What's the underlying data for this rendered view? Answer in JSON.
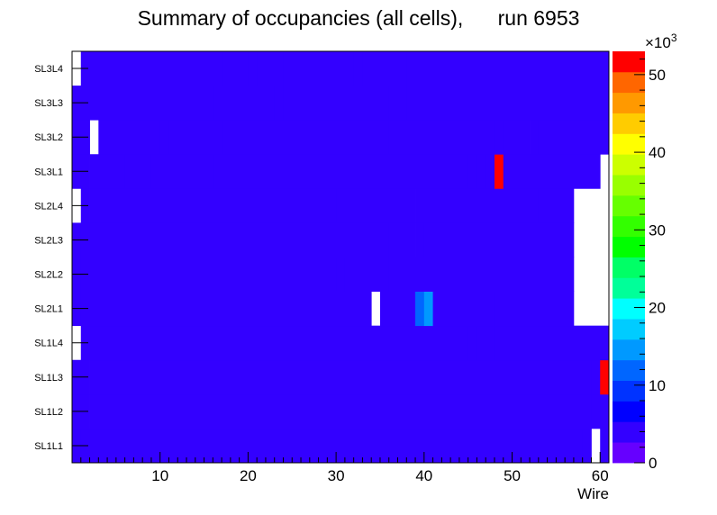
{
  "chart_data": {
    "type": "heatmap",
    "title": "Summary of occupancies (all cells),      run 6953",
    "xlabel": "Wire",
    "ylabel": "",
    "x_range": [
      0,
      61
    ],
    "x_ticks": [
      10,
      20,
      30,
      40,
      50,
      60
    ],
    "rows": [
      "SL1L1",
      "SL1L2",
      "SL1L3",
      "SL1L4",
      "SL2L1",
      "SL2L2",
      "SL2L3",
      "SL2L4",
      "SL3L1",
      "SL3L2",
      "SL3L3",
      "SL3L4"
    ],
    "z_multiplier": "×10",
    "z_exponent": "3",
    "z_range": [
      0,
      53
    ],
    "z_ticks": [
      0,
      10,
      20,
      30,
      40,
      50
    ],
    "palette": [
      "#6600ff",
      "#3300ff",
      "#0000ff",
      "#0033ff",
      "#0066ff",
      "#0099ff",
      "#00ccff",
      "#00ffff",
      "#00ff99",
      "#00ff66",
      "#00ff00",
      "#33ff00",
      "#66ff00",
      "#99ff00",
      "#ccff00",
      "#ffff00",
      "#ffcc00",
      "#ff9900",
      "#ff6600",
      "#ff0000"
    ],
    "segments": {
      "SL1L1": [
        [
          0,
          1,
          5
        ],
        [
          1,
          41,
          4
        ],
        [
          41,
          56,
          5
        ],
        [
          56,
          58,
          4
        ],
        [
          58,
          59,
          5
        ],
        [
          59,
          60,
          -1
        ],
        [
          60,
          61,
          4
        ]
      ],
      "SL1L2": [
        [
          0,
          2,
          5
        ],
        [
          2,
          59,
          4
        ],
        [
          59,
          60,
          5
        ],
        [
          60,
          61,
          4
        ]
      ],
      "SL1L3": [
        [
          0,
          2,
          5
        ],
        [
          2,
          59,
          4
        ],
        [
          59,
          60,
          5
        ],
        [
          60,
          61,
          53
        ]
      ],
      "SL1L4": [
        [
          0,
          1,
          -1
        ],
        [
          1,
          4,
          5
        ],
        [
          4,
          45,
          4
        ],
        [
          45,
          46,
          5
        ],
        [
          46,
          48,
          4
        ],
        [
          48,
          61,
          5
        ]
      ],
      "SL2L1": [
        [
          0,
          1,
          5
        ],
        [
          1,
          34,
          4
        ],
        [
          34,
          35,
          -1
        ],
        [
          35,
          39,
          4
        ],
        [
          39,
          40,
          11
        ],
        [
          40,
          41,
          15
        ],
        [
          41,
          44,
          4
        ],
        [
          44,
          48,
          5
        ],
        [
          48,
          56,
          4
        ],
        [
          56,
          57,
          5
        ],
        [
          57,
          61,
          -1
        ]
      ],
      "SL2L2": [
        [
          0,
          1,
          5
        ],
        [
          1,
          30,
          4
        ],
        [
          30,
          31,
          5
        ],
        [
          31,
          34,
          4
        ],
        [
          34,
          36,
          5
        ],
        [
          36,
          44,
          4
        ],
        [
          44,
          51,
          5
        ],
        [
          51,
          56,
          4
        ],
        [
          56,
          57,
          5
        ],
        [
          57,
          61,
          -1
        ]
      ],
      "SL2L3": [
        [
          0,
          1,
          5
        ],
        [
          1,
          29,
          4
        ],
        [
          29,
          36,
          5
        ],
        [
          36,
          37,
          4
        ],
        [
          37,
          39,
          5
        ],
        [
          39,
          40,
          4
        ],
        [
          40,
          51,
          5
        ],
        [
          51,
          57,
          4
        ],
        [
          57,
          61,
          -1
        ]
      ],
      "SL2L4": [
        [
          0,
          1,
          -1
        ],
        [
          1,
          2,
          5
        ],
        [
          2,
          30,
          4
        ],
        [
          30,
          37,
          5
        ],
        [
          37,
          39,
          4
        ],
        [
          39,
          53,
          5
        ],
        [
          53,
          57,
          4
        ],
        [
          57,
          61,
          -1
        ]
      ],
      "SL3L1": [
        [
          0,
          2,
          5
        ],
        [
          2,
          6,
          4
        ],
        [
          6,
          9,
          5
        ],
        [
          9,
          12,
          4
        ],
        [
          12,
          16,
          5
        ],
        [
          16,
          45,
          4
        ],
        [
          45,
          46,
          5
        ],
        [
          46,
          47,
          4
        ],
        [
          47,
          48,
          5
        ],
        [
          48,
          49,
          53
        ],
        [
          49,
          60,
          5
        ],
        [
          60,
          61,
          -1
        ]
      ],
      "SL3L2": [
        [
          0,
          2,
          5
        ],
        [
          2,
          3,
          -1
        ],
        [
          3,
          10,
          5
        ],
        [
          10,
          11,
          4
        ],
        [
          11,
          17,
          5
        ],
        [
          17,
          36,
          4
        ],
        [
          36,
          37,
          5
        ],
        [
          37,
          48,
          4
        ],
        [
          48,
          49,
          3
        ],
        [
          49,
          52,
          4
        ],
        [
          52,
          53,
          3
        ],
        [
          53,
          61,
          5
        ]
      ],
      "SL3L3": [
        [
          0,
          16,
          5
        ],
        [
          16,
          23,
          4
        ],
        [
          23,
          24,
          5
        ],
        [
          24,
          34,
          4
        ],
        [
          34,
          36,
          5
        ],
        [
          36,
          38,
          4
        ],
        [
          38,
          61,
          5
        ]
      ],
      "SL3L4": [
        [
          0,
          1,
          -1
        ],
        [
          1,
          17,
          5
        ],
        [
          17,
          20,
          4
        ],
        [
          20,
          21,
          5
        ],
        [
          21,
          24,
          4
        ],
        [
          24,
          32,
          5
        ],
        [
          32,
          33,
          4
        ],
        [
          33,
          34,
          5
        ],
        [
          34,
          37,
          5
        ],
        [
          37,
          38,
          4
        ],
        [
          38,
          61,
          5
        ]
      ]
    }
  }
}
